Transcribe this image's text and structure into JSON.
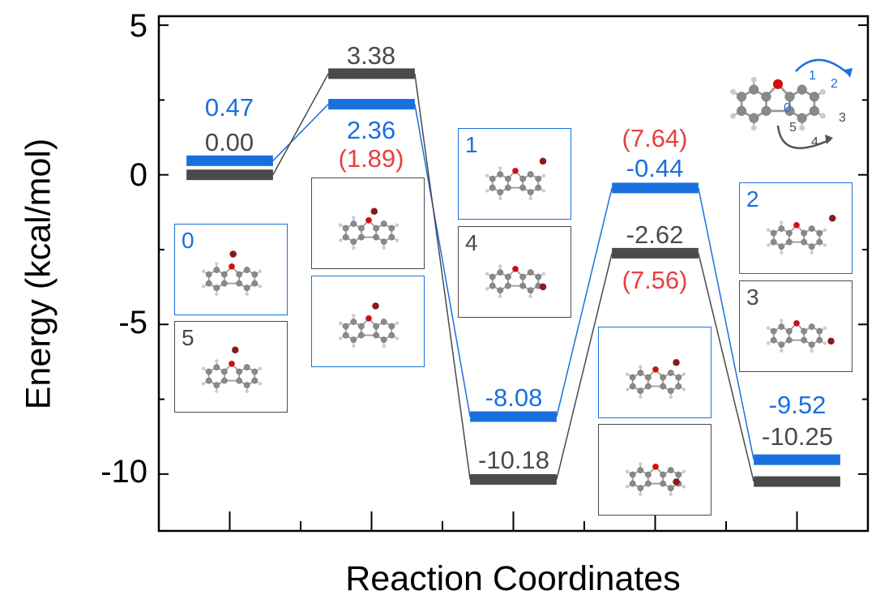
{
  "chart_data": {
    "type": "energy-level-diagram",
    "xlabel": "Reaction Coordinates",
    "ylabel": "Energy (kcal/mol)",
    "ylim": [
      -11.9,
      5.3
    ],
    "xlim": [
      0.5,
      5.5
    ],
    "yticks": [
      "5",
      "0",
      "-5",
      "-10"
    ],
    "ytick_values": [
      5,
      0,
      -5,
      -10
    ],
    "grid": false,
    "colors": {
      "blue": "#1a6fdf",
      "black": "#4a4a4a",
      "red": "#e8403f"
    },
    "series": [
      {
        "color": "blue",
        "values": [
          0.47,
          2.36,
          -8.08,
          -0.44,
          -9.52
        ],
        "labels": [
          "0.47",
          "2.36",
          "-8.08",
          "-0.44",
          "-9.52"
        ]
      },
      {
        "color": "black",
        "values": [
          0.0,
          3.38,
          -10.18,
          -2.62,
          -10.25
        ],
        "labels": [
          "0.00",
          "3.38",
          "-10.18",
          "-2.62",
          "-10.25"
        ]
      }
    ],
    "annotations_red": [
      "(1.89)",
      "(7.64)",
      "(7.56)"
    ],
    "insets": [
      {
        "label": "0",
        "color": "blue"
      },
      {
        "label": "5",
        "color": "black"
      },
      {
        "label": "",
        "color": "black"
      },
      {
        "label": "",
        "color": "blue"
      },
      {
        "label": "1",
        "color": "blue"
      },
      {
        "label": "4",
        "color": "black"
      },
      {
        "label": "",
        "color": "blue"
      },
      {
        "label": "",
        "color": "black"
      },
      {
        "label": "2",
        "color": "blue"
      },
      {
        "label": "3",
        "color": "black"
      }
    ],
    "structure_labels": [
      "0",
      "1",
      "2",
      "3",
      "4",
      "5"
    ]
  }
}
